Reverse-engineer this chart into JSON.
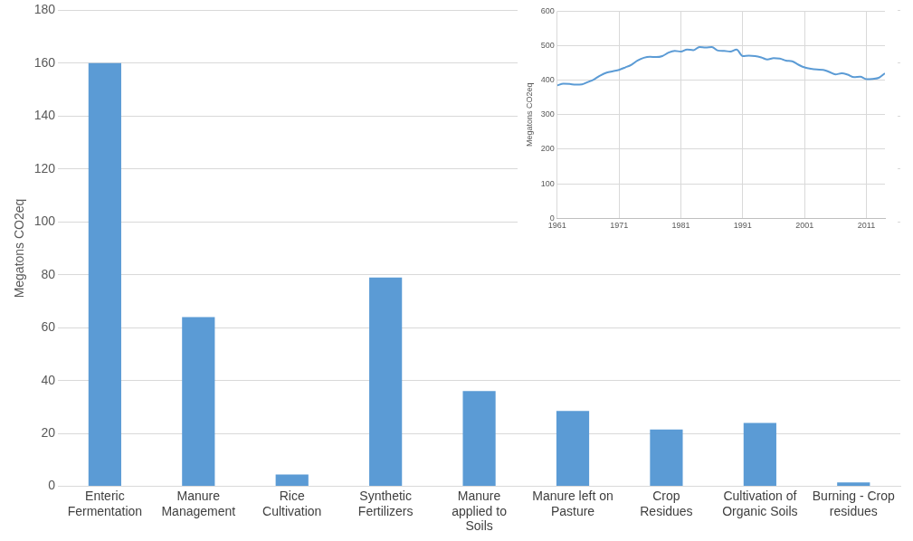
{
  "chart_data": [
    {
      "type": "bar",
      "ylabel": "Megatons CO2eq",
      "categories": [
        "Enteric Fermentation",
        "Manure Management",
        "Rice Cultivation",
        "Synthetic Fertilizers",
        "Manure applied to Soils",
        "Manure left on Pasture",
        "Crop Residues",
        "Cultivation of Organic Soils",
        "Burning - Crop residues"
      ],
      "values": [
        160,
        64,
        4.5,
        79,
        36,
        28.5,
        21.5,
        24,
        1.5
      ],
      "color": "#5b9bd5",
      "ylim": [
        0,
        180
      ],
      "yticks": [
        0,
        20,
        40,
        60,
        80,
        100,
        120,
        140,
        160,
        180
      ],
      "grid": "y",
      "legend": false
    },
    {
      "type": "line",
      "ylabel": "Megatons CO2eq",
      "x": [
        1961,
        1962,
        1963,
        1964,
        1965,
        1966,
        1967,
        1968,
        1969,
        1970,
        1971,
        1972,
        1973,
        1974,
        1975,
        1976,
        1977,
        1978,
        1979,
        1980,
        1981,
        1982,
        1983,
        1984,
        1985,
        1986,
        1987,
        1988,
        1989,
        1990,
        1991,
        1992,
        1993,
        1994,
        1995,
        1996,
        1997,
        1998,
        1999,
        2000,
        2001,
        2002,
        2003,
        2004,
        2005,
        2006,
        2007,
        2008,
        2009,
        2010,
        2011,
        2012,
        2013,
        2014
      ],
      "values": [
        385,
        390,
        389,
        387,
        388,
        395,
        403,
        414,
        422,
        426,
        430,
        437,
        445,
        457,
        465,
        468,
        467,
        470,
        480,
        485,
        483,
        489,
        487,
        496,
        495,
        496,
        486,
        485,
        483,
        489,
        470,
        471,
        470,
        466,
        460,
        464,
        463,
        457,
        455,
        445,
        437,
        433,
        431,
        430,
        424,
        417,
        420,
        416,
        409,
        410,
        403,
        404,
        407,
        420
      ],
      "color": "#5b9bd5",
      "marker": "none",
      "line_style": "solid",
      "xlim": [
        1961,
        2014
      ],
      "xticks": [
        1961,
        1971,
        1981,
        1991,
        2001,
        2011
      ],
      "ylim": [
        0,
        600
      ],
      "yticks": [
        0,
        100,
        200,
        300,
        400,
        500,
        600
      ],
      "grid": true,
      "legend": false
    }
  ]
}
